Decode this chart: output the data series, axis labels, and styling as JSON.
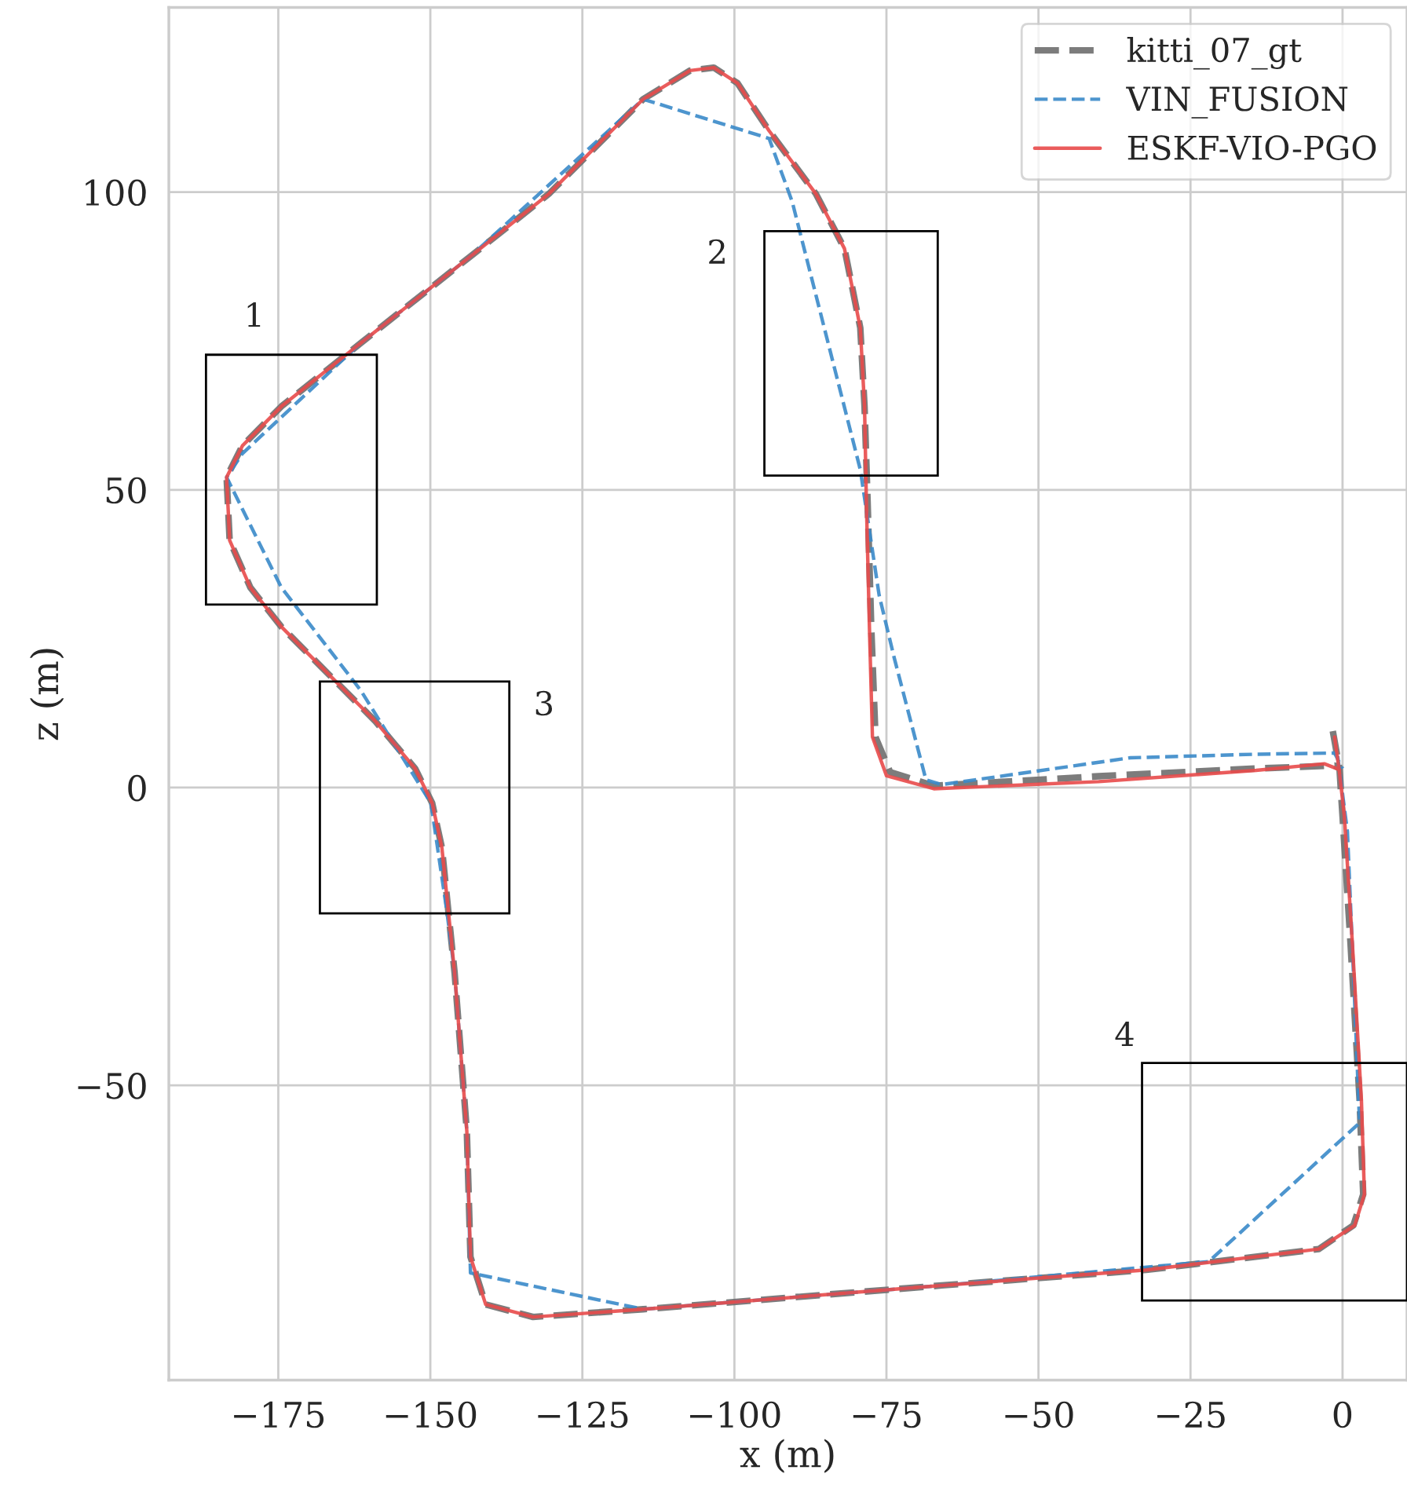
{
  "chart_data": {
    "type": "line",
    "xlabel": "x (m)",
    "ylabel": "z (m)",
    "xlim": [
      -193,
      10.6
    ],
    "ylim": [
      -99.5,
      131
    ],
    "xticks": [
      {
        "value": -175,
        "label": "−175"
      },
      {
        "value": -150,
        "label": "−150"
      },
      {
        "value": -125,
        "label": "−125"
      },
      {
        "value": -100,
        "label": "−100"
      },
      {
        "value": -75,
        "label": "−75"
      },
      {
        "value": -50,
        "label": "−50"
      },
      {
        "value": -25,
        "label": "−25"
      },
      0
    ],
    "yticks": [
      {
        "value": -50,
        "label": "−50"
      },
      0,
      50,
      100
    ],
    "grid": true,
    "legend": "top right",
    "marker": "none",
    "series": [
      {
        "name": "kitti_07_gt",
        "color": "#6e6e6e",
        "line_style": "dashed",
        "x": [
          -1.6,
          -0.5,
          0,
          1.3,
          2.8,
          3.4,
          1.8,
          -3.9,
          -32.3,
          -65.9,
          -115.0,
          -133.1,
          -140.9,
          -143.4,
          -144.0,
          -146.0,
          -148.1,
          -149.7,
          -152.5,
          -159.0,
          -166.7,
          -174.5,
          -179.6,
          -183.0,
          -183.5,
          -180.9,
          -174.5,
          -161.5,
          -143.4,
          -130.5,
          -115.0,
          -107.3,
          -103.4,
          -99.5,
          -94.3,
          -86.6,
          -81.9,
          -79.3,
          -78.6,
          -78.1,
          -77.5,
          -76.8,
          -74.4,
          -67.2,
          -40.1,
          -14.2,
          -1.3,
          -0.5
        ],
        "values": [
          9.5,
          3.2,
          -4.8,
          -25.9,
          -52.4,
          -68.3,
          -73.5,
          -77.5,
          -81.0,
          -83.6,
          -87.6,
          -88.9,
          -86.8,
          -78.8,
          -57.7,
          -31.2,
          -10.1,
          -2.6,
          3.2,
          11.1,
          19.0,
          27.0,
          33.6,
          41.5,
          52.1,
          57.4,
          64.0,
          74.6,
          89.2,
          99.7,
          115.6,
          120.4,
          120.9,
          118.3,
          110.3,
          99.7,
          90.5,
          77.2,
          64.0,
          48.1,
          27.0,
          8.5,
          2.6,
          0.3,
          1.9,
          3.2,
          3.7,
          3.2
        ]
      },
      {
        "name": "VIN_FUSION",
        "color": "#3a8ac9",
        "line_style": "dashed",
        "x": [
          -0.8,
          0.8,
          1.8,
          2.8,
          -22.0,
          -65.9,
          -115.0,
          -143.4,
          -144.0,
          -146.0,
          -147.3,
          -149.9,
          -161.5,
          -174.5,
          -183.5,
          -180.9,
          -161.5,
          -143.4,
          -115.0,
          -94.3,
          -90.5,
          -79.3,
          -76.2,
          -73.7,
          -68.5,
          -65.9,
          -34.9,
          -14.2,
          -1.3,
          0
        ],
        "values": [
          5.3,
          -7.4,
          -31.2,
          -56.3,
          -79.6,
          -83.6,
          -87.6,
          -81.5,
          -57.7,
          -31.2,
          -20.6,
          -2.6,
          16.4,
          33.6,
          52.1,
          56.1,
          74.6,
          89.2,
          115.6,
          109.0,
          98.4,
          53.4,
          32.3,
          21.7,
          1.3,
          0.5,
          5.0,
          5.6,
          5.8,
          3.2
        ]
      },
      {
        "name": "ESKF-VIO-PGO",
        "color": "#e84a4a",
        "line_style": "solid",
        "x": [
          -1.3,
          -0.5,
          0.3,
          1.6,
          3.1,
          3.6,
          2.0,
          -3.9,
          -32.3,
          -65.9,
          -115.0,
          -133.1,
          -140.9,
          -143.4,
          -144.0,
          -146.0,
          -148.1,
          -149.7,
          -152.5,
          -159.0,
          -166.7,
          -174.5,
          -179.6,
          -183.0,
          -183.5,
          -180.9,
          -174.5,
          -161.5,
          -143.4,
          -130.5,
          -115.0,
          -107.3,
          -103.4,
          -99.5,
          -94.3,
          -86.6,
          -81.9,
          -79.3,
          -78.6,
          -78.3,
          -77.8,
          -77.3,
          -75.0,
          -67.2,
          -40.1,
          -14.2,
          -3.0,
          -0.5
        ],
        "values": [
          8.5,
          2.5,
          -4.8,
          -25.9,
          -52.4,
          -68.3,
          -73.5,
          -77.5,
          -81.0,
          -83.6,
          -87.6,
          -88.9,
          -86.8,
          -78.8,
          -57.7,
          -31.2,
          -10.1,
          -2.6,
          3.2,
          11.1,
          19.0,
          27.0,
          33.6,
          41.5,
          52.1,
          57.4,
          64.0,
          74.6,
          89.2,
          99.7,
          115.6,
          120.4,
          120.9,
          118.3,
          110.3,
          99.7,
          90.5,
          77.2,
          64.0,
          48.1,
          27.0,
          8.5,
          2.0,
          -0.2,
          1.0,
          2.9,
          4.0,
          3.0
        ]
      }
    ],
    "annotations": [
      "1",
      "2",
      "3",
      "4"
    ]
  }
}
